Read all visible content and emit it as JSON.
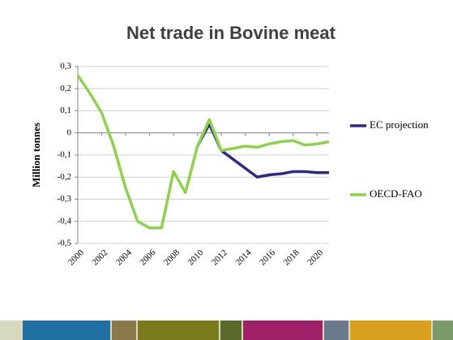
{
  "chart_data": {
    "type": "line",
    "title": "Net trade in Bovine meat",
    "y_label": "Million tonnes",
    "x": [
      2000,
      2001,
      2002,
      2003,
      2004,
      2005,
      2006,
      2007,
      2008,
      2009,
      2010,
      2011,
      2012,
      2013,
      2014,
      2015,
      2016,
      2017,
      2018,
      2019,
      2020,
      2021
    ],
    "series": [
      {
        "name": "EC projection",
        "color": "#2b2b80",
        "values": [
          null,
          null,
          null,
          null,
          null,
          null,
          null,
          null,
          null,
          null,
          -0.06,
          0.04,
          -0.08,
          -0.12,
          -0.16,
          -0.2,
          -0.19,
          -0.185,
          -0.175,
          -0.175,
          -0.18,
          -0.18
        ]
      },
      {
        "name": "OECD-FAO",
        "color": "#8fd14f",
        "values": [
          0.26,
          0.18,
          0.09,
          -0.06,
          -0.25,
          -0.4,
          -0.43,
          -0.43,
          -0.175,
          -0.27,
          -0.06,
          0.06,
          -0.08,
          -0.07,
          -0.06,
          -0.065,
          -0.05,
          -0.04,
          -0.035,
          -0.055,
          -0.05,
          -0.04
        ]
      }
    ],
    "xlim": [
      2000,
      2021
    ],
    "xticks": [
      2000,
      2002,
      2004,
      2006,
      2008,
      2010,
      2012,
      2014,
      2016,
      2018,
      2020
    ],
    "ylim": [
      -0.5,
      0.3
    ],
    "yticks": [
      {
        "value": -0.5,
        "label": "-0,5"
      },
      {
        "value": -0.4,
        "label": "-0,4"
      },
      {
        "value": -0.3,
        "label": "-0,3"
      },
      {
        "value": -0.2,
        "label": "-0,2"
      },
      {
        "value": -0.1,
        "label": "-0,1"
      },
      {
        "value": 0,
        "label": "0"
      },
      {
        "value": 0.1,
        "label": "0,1"
      },
      {
        "value": 0.2,
        "label": "0,2"
      },
      {
        "value": 0.3,
        "label": "0,3"
      }
    ],
    "grid": true
  }
}
